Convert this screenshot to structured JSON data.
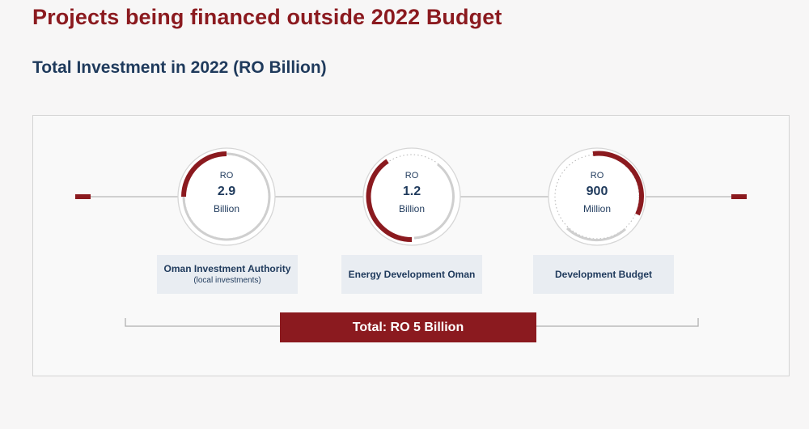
{
  "title": "Projects being financed outside 2022 Budget",
  "subtitle": "Total Investment in 2022 (RO Billion)",
  "items": [
    {
      "currency": "RO",
      "value": "2.9",
      "unit": "Billion",
      "name": "Oman Investment Authority",
      "note": "(local investments)",
      "arc_fraction": 0.25
    },
    {
      "currency": "RO",
      "value": "1.2",
      "unit": "Billion",
      "name": "Energy Development Oman",
      "note": "",
      "arc_fraction": 0.35
    },
    {
      "currency": "RO",
      "value": "900",
      "unit": "Million",
      "name": "Development Budget",
      "note": "",
      "arc_fraction": 0.3
    }
  ],
  "total_label": "Total: RO 5 Billion",
  "colors": {
    "accent": "#8b1a1f",
    "navy": "#1f3a5c",
    "ring": "#cfcfcf",
    "label_bg": "#e9edf2"
  }
}
